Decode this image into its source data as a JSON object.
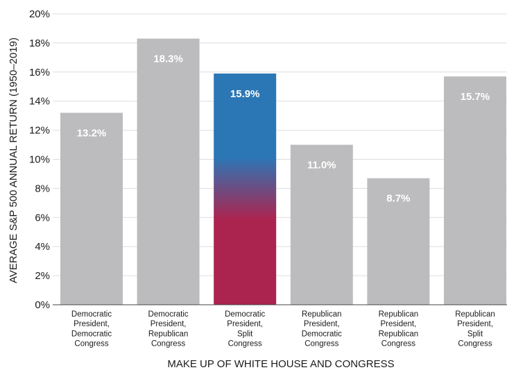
{
  "chart_data": {
    "type": "bar",
    "title": "",
    "xlabel": "MAKE UP OF WHITE HOUSE AND CONGRESS",
    "ylabel": "AVERAGE S&P 500 ANNUAL RETURN (1950–2019)",
    "ylim": [
      0,
      20
    ],
    "yticks": [
      "0%",
      "2%",
      "4%",
      "6%",
      "8%",
      "10%",
      "12%",
      "14%",
      "16%",
      "18%",
      "20%"
    ],
    "grid": true,
    "categories": [
      [
        "Democratic",
        "President,",
        "Democratic",
        "Congress"
      ],
      [
        "Democratic",
        "President,",
        "Republican",
        "Congress"
      ],
      [
        "Democratic",
        "President,",
        "Split",
        "Congress"
      ],
      [
        "Republican",
        "President,",
        "Democratic",
        "Congress"
      ],
      [
        "Republican",
        "President,",
        "Republican",
        "Congress"
      ],
      [
        "Republican",
        "President,",
        "Split",
        "Congress"
      ]
    ],
    "values": [
      13.2,
      18.3,
      15.9,
      11.0,
      8.7,
      15.7
    ],
    "value_labels": [
      "13.2%",
      "18.3%",
      "15.9%",
      "11.0%",
      "8.7%",
      "15.7%"
    ],
    "highlight_index": 2,
    "colors": {
      "bar": "#bcbcbe",
      "highlight_top": "#2b77b6",
      "highlight_bottom": "#ab2450",
      "value_label": "#ffffff",
      "grid": "#dddddd",
      "axis": "#444444",
      "text": "#1a1a1a"
    }
  }
}
